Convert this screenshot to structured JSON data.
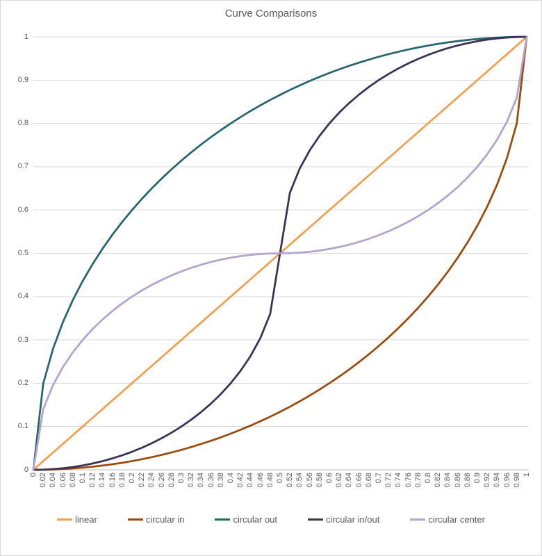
{
  "chart_data": {
    "type": "line",
    "title": "Curve Comparisons",
    "xlabel": "",
    "ylabel": "",
    "xlim": [
      0,
      1
    ],
    "ylim": [
      0,
      1
    ],
    "grid": "horizontal",
    "legend_position": "bottom",
    "style": {
      "grid_color": "#d9d9d9",
      "axis_color": "#bfbfbf",
      "text_color": "#595959",
      "border_color": "#d9d9d9",
      "background": "#ffffff"
    },
    "x": [
      0,
      0.02,
      0.04,
      0.06,
      0.08,
      0.1,
      0.12,
      0.14,
      0.16,
      0.18,
      0.2,
      0.22,
      0.24,
      0.26,
      0.28,
      0.3,
      0.32,
      0.34,
      0.36,
      0.38,
      0.4,
      0.42,
      0.44,
      0.46,
      0.48,
      0.5,
      0.52,
      0.54,
      0.56,
      0.58,
      0.6,
      0.62,
      0.64,
      0.66,
      0.68,
      0.7,
      0.72,
      0.74,
      0.76,
      0.78,
      0.8,
      0.82,
      0.84,
      0.86,
      0.88,
      0.9,
      0.92,
      0.94,
      0.96,
      0.98,
      1
    ],
    "x_tick_labels": [
      "0",
      "0.02",
      "0.04",
      "0.06",
      "0.08",
      "0.1",
      "0.12",
      "0.14",
      "0.16",
      "0.18",
      "0.2",
      "0.22",
      "0.24",
      "0.26",
      "0.28",
      "0.3",
      "0.32",
      "0.34",
      "0.36",
      "0.38",
      "0.4",
      "0.42",
      "0.44",
      "0.46",
      "0.48",
      "0.5",
      "0.52",
      "0.54",
      "0.56",
      "0.58",
      "0.6",
      "0.62",
      "0.64",
      "0.66",
      "0.68",
      "0.7",
      "0.72",
      "0.74",
      "0.76",
      "0.78",
      "0.8",
      "0.82",
      "0.84",
      "0.86",
      "0.88",
      "0.9",
      "0.92",
      "0.94",
      "0.96",
      "0.98",
      "1"
    ],
    "y_ticks": [
      0,
      0.1,
      0.2,
      0.3,
      0.4,
      0.5,
      0.6,
      0.7,
      0.8,
      0.9,
      1
    ],
    "y_tick_labels": [
      "0",
      "0.1",
      "0.2",
      "0.3",
      "0.4",
      "0.5",
      "0.6",
      "0.7",
      "0.8",
      "0.9",
      "1"
    ],
    "series": [
      {
        "name": "linear",
        "color": "#f0a050",
        "values": [
          0,
          0.02,
          0.04,
          0.06,
          0.08,
          0.1,
          0.12,
          0.14,
          0.16,
          0.18,
          0.2,
          0.22,
          0.24,
          0.26,
          0.28,
          0.3,
          0.32,
          0.34,
          0.36,
          0.38,
          0.4,
          0.42,
          0.44,
          0.46,
          0.48,
          0.5,
          0.52,
          0.54,
          0.56,
          0.58,
          0.6,
          0.62,
          0.64,
          0.66,
          0.68,
          0.7,
          0.72,
          0.74,
          0.76,
          0.78,
          0.8,
          0.82,
          0.84,
          0.86,
          0.88,
          0.9,
          0.92,
          0.94,
          0.96,
          0.98,
          1
        ]
      },
      {
        "name": "circular in",
        "color": "#9b4a0b",
        "values": [
          0,
          0.0002,
          0.0008,
          0.0018,
          0.0032,
          0.005,
          0.0072,
          0.0099,
          0.0129,
          0.0163,
          0.0202,
          0.0245,
          0.0292,
          0.0344,
          0.04,
          0.0461,
          0.0526,
          0.0596,
          0.0671,
          0.075,
          0.0835,
          0.0925,
          0.102,
          0.1121,
          0.1227,
          0.134,
          0.1458,
          0.1583,
          0.1715,
          0.1854,
          0.2,
          0.2154,
          0.2316,
          0.2487,
          0.2668,
          0.2859,
          0.306,
          0.3274,
          0.3501,
          0.3742,
          0.4,
          0.4276,
          0.4574,
          0.4897,
          0.525,
          0.5641,
          0.6081,
          0.6588,
          0.72,
          0.801,
          1
        ]
      },
      {
        "name": "circular out",
        "color": "#27646e",
        "values": [
          0,
          0.199,
          0.28,
          0.3412,
          0.3919,
          0.4359,
          0.475,
          0.5103,
          0.5426,
          0.5724,
          0.6,
          0.6258,
          0.6499,
          0.6726,
          0.694,
          0.7141,
          0.7332,
          0.7513,
          0.7684,
          0.7846,
          0.8,
          0.8146,
          0.8285,
          0.8417,
          0.8542,
          0.866,
          0.8773,
          0.8879,
          0.898,
          0.9075,
          0.9165,
          0.925,
          0.933,
          0.9404,
          0.9474,
          0.9539,
          0.96,
          0.9656,
          0.9708,
          0.9755,
          0.9798,
          0.9837,
          0.9871,
          0.9902,
          0.9928,
          0.995,
          0.9968,
          0.9982,
          0.9992,
          0.9998,
          1
        ]
      },
      {
        "name": "circular in/out",
        "color": "#3a3153",
        "values": [
          0,
          0.0004,
          0.0016,
          0.0036,
          0.0064,
          0.0101,
          0.0146,
          0.02,
          0.0263,
          0.0335,
          0.0417,
          0.051,
          0.0614,
          0.0729,
          0.0858,
          0.1,
          0.1158,
          0.1334,
          0.153,
          0.175,
          0.2,
          0.2287,
          0.2625,
          0.304,
          0.36,
          0.5,
          0.64,
          0.696,
          0.7375,
          0.7713,
          0.8,
          0.825,
          0.847,
          0.8666,
          0.8842,
          0.9,
          0.9142,
          0.9271,
          0.9386,
          0.949,
          0.9583,
          0.9665,
          0.9738,
          0.98,
          0.9854,
          0.9899,
          0.9936,
          0.9964,
          0.9984,
          0.9996,
          1
        ]
      },
      {
        "name": "circular center",
        "color": "#b2a4ce",
        "values": [
          0,
          0.14,
          0.196,
          0.2375,
          0.2713,
          0.3,
          0.325,
          0.347,
          0.3666,
          0.3842,
          0.4,
          0.4142,
          0.4271,
          0.4386,
          0.449,
          0.4583,
          0.4665,
          0.4737,
          0.48,
          0.4854,
          0.4899,
          0.4936,
          0.4964,
          0.4984,
          0.4996,
          0.5,
          0.5004,
          0.5016,
          0.5036,
          0.5064,
          0.5101,
          0.5146,
          0.52,
          0.5263,
          0.5335,
          0.5417,
          0.551,
          0.5614,
          0.5729,
          0.5858,
          0.6,
          0.6158,
          0.6334,
          0.653,
          0.675,
          0.7,
          0.7287,
          0.7625,
          0.804,
          0.86,
          1
        ]
      }
    ]
  }
}
